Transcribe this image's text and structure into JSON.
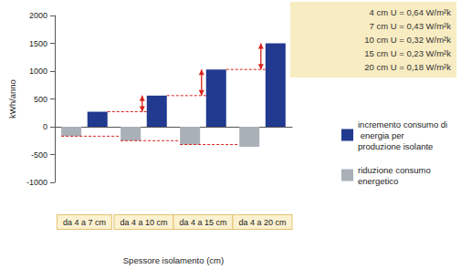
{
  "chart_data": {
    "type": "bar",
    "x_label": "Spessore isolamento (cm)",
    "y_label": "kWh/anno",
    "categories": [
      "da 4 a 7 cm",
      "da 4 a 10 cm",
      "da 4 a 15 cm",
      "da 4 a 20 cm"
    ],
    "series": [
      {
        "name": "incremento consumo di energia per produzione isolante",
        "color": "#21398f",
        "values": [
          270,
          560,
          1030,
          1500
        ]
      },
      {
        "name": "riduzione consumo energetico",
        "color": "#a9b0b8",
        "values": [
          -170,
          -250,
          -320,
          -360
        ]
      }
    ],
    "ylim": [
      -1000,
      2000
    ],
    "yticks": [
      -1000,
      -500,
      0,
      500,
      1000,
      1500,
      2000
    ],
    "grid": false,
    "legend": "right",
    "annotations": [
      "4 cm U = 0,64 W/m²k",
      "7 cm U = 0,43 W/m²k",
      "10 cm U = 0,32 W/m²k",
      "15 cm U = 0,23 W/m²k",
      "20 cm U = 0,18 W/m²k"
    ]
  }
}
